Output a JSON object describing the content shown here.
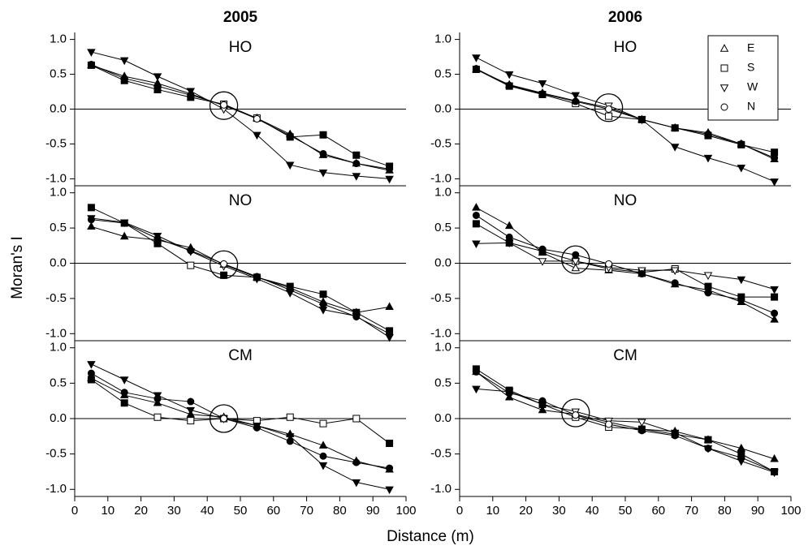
{
  "x_label": "Distance (m)",
  "y_label": "Moran's I",
  "chart_data": [
    {
      "type": "line",
      "title": "2005",
      "panel_label": "HO",
      "x": [
        5,
        15,
        25,
        35,
        45,
        55,
        65,
        75,
        85,
        95
      ],
      "xlim": [
        0,
        100
      ],
      "ylim": [
        -1.1,
        1.1
      ],
      "yticks": [
        {
          "value": -1,
          "label": "-1.0"
        },
        -0.5,
        {
          "value": 0,
          "label": "0.0"
        },
        0.5,
        {
          "value": 1,
          "label": "1.0"
        }
      ],
      "reference_line": 0,
      "highlight": {
        "x": 45,
        "y": 0.05
      },
      "series": [
        {
          "name": "E",
          "color": "#000000",
          "marker": "triangle-up",
          "values": [
            0.63,
            0.47,
            0.37,
            0.22,
            0.05,
            -0.13,
            -0.36,
            -0.66,
            -0.78,
            -0.88
          ],
          "filled": [
            true,
            true,
            true,
            true,
            false,
            false,
            true,
            true,
            true,
            true
          ]
        },
        {
          "name": "S",
          "color": "#000000",
          "marker": "square",
          "values": [
            0.63,
            0.41,
            0.28,
            0.17,
            0.07,
            -0.13,
            -0.4,
            -0.37,
            -0.66,
            -0.82
          ],
          "filled": [
            true,
            true,
            true,
            true,
            false,
            false,
            true,
            true,
            true,
            true
          ]
        },
        {
          "name": "W",
          "color": "#000000",
          "marker": "triangle-down",
          "values": [
            0.82,
            0.7,
            0.47,
            0.26,
            0.0,
            -0.37,
            -0.8,
            -0.91,
            -0.96,
            -1.0
          ],
          "filled": [
            true,
            true,
            true,
            true,
            false,
            true,
            true,
            true,
            true,
            true
          ]
        },
        {
          "name": "N",
          "color": "#000000",
          "marker": "circle",
          "values": [
            0.64,
            0.44,
            0.33,
            0.2,
            0.06,
            -0.14,
            -0.38,
            -0.64,
            -0.78,
            -0.86
          ],
          "filled": [
            true,
            true,
            true,
            true,
            false,
            false,
            true,
            true,
            true,
            true
          ]
        }
      ]
    },
    {
      "type": "line",
      "title": "2006",
      "panel_label": "HO",
      "legend": "top-right",
      "x": [
        5,
        15,
        25,
        35,
        45,
        55,
        65,
        75,
        85,
        95
      ],
      "xlim": [
        0,
        100
      ],
      "ylim": [
        -1.1,
        1.1
      ],
      "yticks": [
        {
          "value": -1,
          "label": "-1.0"
        },
        -0.5,
        {
          "value": 0,
          "label": "0.0"
        },
        0.5,
        {
          "value": 1,
          "label": "1.0"
        }
      ],
      "reference_line": 0,
      "highlight": {
        "x": 45,
        "y": 0.02
      },
      "series": [
        {
          "name": "E",
          "color": "#000000",
          "marker": "triangle-up",
          "values": [
            0.57,
            0.35,
            0.23,
            0.12,
            0.02,
            -0.15,
            -0.27,
            -0.34,
            -0.5,
            -0.72
          ],
          "filled": [
            true,
            true,
            true,
            true,
            false,
            true,
            true,
            true,
            true,
            true
          ]
        },
        {
          "name": "S",
          "color": "#000000",
          "marker": "square",
          "values": [
            0.57,
            0.33,
            0.21,
            0.08,
            -0.1,
            -0.15,
            -0.27,
            -0.38,
            -0.51,
            -0.62
          ],
          "filled": [
            true,
            true,
            true,
            false,
            false,
            true,
            true,
            true,
            true,
            true
          ]
        },
        {
          "name": "W",
          "color": "#000000",
          "marker": "triangle-down",
          "values": [
            0.74,
            0.5,
            0.37,
            0.2,
            0.05,
            -0.15,
            -0.54,
            -0.7,
            -0.84,
            -1.04
          ],
          "filled": [
            true,
            true,
            true,
            true,
            false,
            true,
            true,
            true,
            true,
            true
          ]
        },
        {
          "name": "N",
          "color": "#000000",
          "marker": "circle",
          "values": [
            0.58,
            0.34,
            0.22,
            0.11,
            0.0,
            -0.15,
            -0.27,
            -0.36,
            -0.5,
            -0.7
          ],
          "filled": [
            true,
            true,
            true,
            true,
            false,
            true,
            true,
            true,
            true,
            true
          ]
        }
      ]
    },
    {
      "type": "line",
      "panel_label": "NO",
      "x": [
        5,
        15,
        25,
        35,
        45,
        55,
        65,
        75,
        85,
        95
      ],
      "xlim": [
        0,
        100
      ],
      "ylim": [
        -1.1,
        1.1
      ],
      "yticks": [
        {
          "value": -1,
          "label": "-1.0"
        },
        -0.5,
        {
          "value": 0,
          "label": "0.0"
        },
        0.5,
        {
          "value": 1,
          "label": "1.0"
        }
      ],
      "reference_line": 0,
      "highlight": {
        "x": 45,
        "y": -0.02
      },
      "series": [
        {
          "name": "E",
          "color": "#000000",
          "marker": "triangle-up",
          "values": [
            0.52,
            0.38,
            0.33,
            0.22,
            -0.02,
            -0.2,
            -0.35,
            -0.55,
            -0.7,
            -0.62
          ],
          "filled": [
            true,
            true,
            true,
            true,
            false,
            true,
            true,
            true,
            true,
            true
          ]
        },
        {
          "name": "S",
          "color": "#000000",
          "marker": "square",
          "values": [
            0.79,
            0.57,
            0.28,
            -0.03,
            -0.17,
            -0.2,
            -0.33,
            -0.44,
            -0.7,
            -0.96
          ],
          "filled": [
            true,
            true,
            true,
            false,
            true,
            true,
            true,
            true,
            true,
            true
          ]
        },
        {
          "name": "W",
          "color": "#000000",
          "marker": "triangle-down",
          "values": [
            0.64,
            0.58,
            0.39,
            0.17,
            -0.04,
            -0.22,
            -0.42,
            -0.66,
            -0.75,
            -1.05
          ],
          "filled": [
            true,
            true,
            true,
            true,
            false,
            true,
            true,
            true,
            true,
            true
          ]
        },
        {
          "name": "N",
          "color": "#000000",
          "marker": "circle",
          "values": [
            0.62,
            0.57,
            0.35,
            0.18,
            -0.01,
            -0.19,
            -0.38,
            -0.58,
            -0.76,
            -1.0
          ],
          "filled": [
            true,
            true,
            true,
            true,
            false,
            true,
            true,
            true,
            true,
            true
          ]
        }
      ]
    },
    {
      "type": "line",
      "panel_label": "NO",
      "x": [
        5,
        15,
        25,
        35,
        45,
        55,
        65,
        75,
        85,
        95
      ],
      "xlim": [
        0,
        100
      ],
      "ylim": [
        -1.1,
        1.1
      ],
      "yticks": [
        {
          "value": -1,
          "label": "-1.0"
        },
        -0.5,
        {
          "value": 0,
          "label": "0.0"
        },
        0.5,
        {
          "value": 1,
          "label": "1.0"
        }
      ],
      "reference_line": 0,
      "highlight": {
        "x": 35,
        "y": 0.05
      },
      "series": [
        {
          "name": "E",
          "color": "#000000",
          "marker": "triangle-up",
          "values": [
            0.79,
            0.53,
            0.15,
            -0.07,
            -0.1,
            -0.15,
            -0.3,
            -0.38,
            -0.55,
            -0.8
          ],
          "filled": [
            true,
            true,
            true,
            false,
            false,
            true,
            true,
            true,
            true,
            true
          ]
        },
        {
          "name": "S",
          "color": "#000000",
          "marker": "square",
          "values": [
            0.56,
            0.29,
            0.17,
            0.03,
            -0.08,
            -0.13,
            -0.08,
            -0.33,
            -0.48,
            -0.48
          ],
          "filled": [
            true,
            true,
            true,
            false,
            false,
            true,
            false,
            true,
            true,
            true
          ]
        },
        {
          "name": "W",
          "color": "#000000",
          "marker": "triangle-down",
          "values": [
            0.28,
            0.29,
            0.03,
            0.03,
            -0.06,
            -0.1,
            -0.1,
            -0.17,
            -0.23,
            -0.37
          ],
          "filled": [
            true,
            true,
            false,
            false,
            false,
            false,
            false,
            false,
            true,
            true
          ]
        },
        {
          "name": "N",
          "color": "#000000",
          "marker": "circle",
          "values": [
            0.68,
            0.37,
            0.2,
            0.12,
            -0.01,
            -0.15,
            -0.28,
            -0.42,
            -0.52,
            -0.71
          ],
          "filled": [
            true,
            true,
            true,
            true,
            false,
            true,
            true,
            true,
            true,
            true
          ]
        }
      ]
    },
    {
      "type": "line",
      "panel_label": "CM",
      "x": [
        5,
        15,
        25,
        35,
        45,
        55,
        65,
        75,
        85,
        95
      ],
      "xlim": [
        0,
        100
      ],
      "xticks": [
        0,
        10,
        20,
        30,
        40,
        50,
        60,
        70,
        80,
        90,
        100
      ],
      "ylim": [
        -1.1,
        1.1
      ],
      "yticks": [
        {
          "value": -1,
          "label": "-1.0"
        },
        -0.5,
        {
          "value": 0,
          "label": "0.0"
        },
        0.5,
        {
          "value": 1,
          "label": "1.0"
        }
      ],
      "reference_line": 0,
      "highlight": {
        "x": 45,
        "y": 0.0
      },
      "series": [
        {
          "name": "E",
          "color": "#000000",
          "marker": "triangle-up",
          "values": [
            0.57,
            0.33,
            0.22,
            0.06,
            0.02,
            -0.1,
            -0.22,
            -0.38,
            -0.6,
            -0.72
          ],
          "filled": [
            true,
            true,
            true,
            true,
            false,
            true,
            true,
            true,
            true,
            true
          ]
        },
        {
          "name": "S",
          "color": "#000000",
          "marker": "square",
          "values": [
            0.55,
            0.22,
            0.02,
            -0.03,
            0.0,
            -0.03,
            0.02,
            -0.07,
            0.0,
            -0.35
          ],
          "filled": [
            true,
            true,
            false,
            false,
            false,
            false,
            false,
            false,
            false,
            true
          ]
        },
        {
          "name": "W",
          "color": "#000000",
          "marker": "triangle-down",
          "values": [
            0.77,
            0.55,
            0.33,
            0.12,
            0.0,
            -0.1,
            -0.25,
            -0.66,
            -0.9,
            -1.0
          ],
          "filled": [
            true,
            true,
            true,
            true,
            false,
            true,
            true,
            true,
            true,
            true
          ]
        },
        {
          "name": "N",
          "color": "#000000",
          "marker": "circle",
          "values": [
            0.64,
            0.37,
            0.28,
            0.24,
            0.0,
            -0.13,
            -0.32,
            -0.53,
            -0.62,
            -0.7
          ],
          "filled": [
            true,
            true,
            true,
            true,
            false,
            true,
            true,
            true,
            true,
            true
          ]
        }
      ]
    },
    {
      "type": "line",
      "panel_label": "CM",
      "x": [
        5,
        15,
        25,
        35,
        45,
        55,
        65,
        75,
        85,
        95
      ],
      "xlim": [
        0,
        100
      ],
      "xticks": [
        0,
        10,
        20,
        30,
        40,
        50,
        60,
        70,
        80,
        90,
        100
      ],
      "ylim": [
        -1.1,
        1.1
      ],
      "yticks": [
        {
          "value": -1,
          "label": "-1.0"
        },
        -0.5,
        {
          "value": 0,
          "label": "0.0"
        },
        0.5,
        {
          "value": 1,
          "label": "1.0"
        }
      ],
      "reference_line": 0,
      "highlight": {
        "x": 35,
        "y": 0.08
      },
      "series": [
        {
          "name": "E",
          "color": "#000000",
          "marker": "triangle-up",
          "values": [
            0.66,
            0.3,
            0.12,
            0.06,
            -0.05,
            -0.15,
            -0.18,
            -0.3,
            -0.42,
            -0.57
          ],
          "filled": [
            true,
            true,
            true,
            false,
            false,
            true,
            true,
            true,
            true,
            true
          ]
        },
        {
          "name": "S",
          "color": "#000000",
          "marker": "square",
          "values": [
            0.7,
            0.4,
            0.2,
            0.02,
            -0.12,
            -0.15,
            -0.22,
            -0.3,
            -0.5,
            -0.75
          ],
          "filled": [
            true,
            true,
            true,
            false,
            false,
            true,
            true,
            true,
            true,
            true
          ]
        },
        {
          "name": "W",
          "color": "#000000",
          "marker": "triangle-down",
          "values": [
            0.42,
            0.38,
            0.2,
            0.1,
            -0.03,
            -0.05,
            -0.2,
            -0.42,
            -0.6,
            -0.76
          ],
          "filled": [
            true,
            true,
            true,
            false,
            false,
            false,
            true,
            true,
            true,
            true
          ]
        },
        {
          "name": "N",
          "color": "#000000",
          "marker": "circle",
          "values": [
            0.66,
            0.36,
            0.25,
            0.05,
            -0.08,
            -0.17,
            -0.24,
            -0.42,
            -0.55,
            -0.75
          ],
          "filled": [
            true,
            true,
            true,
            false,
            false,
            true,
            true,
            true,
            true,
            true
          ]
        }
      ]
    }
  ]
}
